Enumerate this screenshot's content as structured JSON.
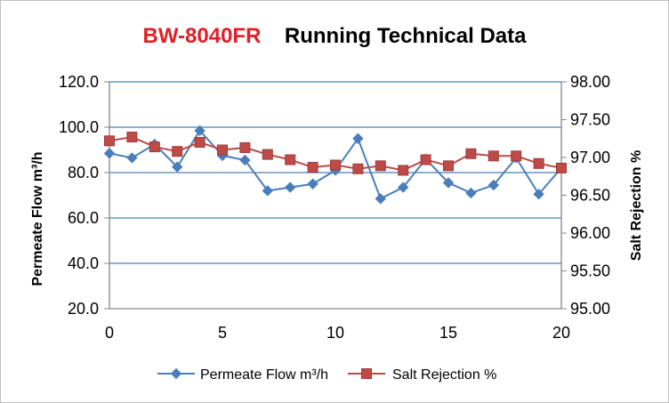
{
  "chart_data": {
    "type": "line",
    "title_part1": "BW-8040FR",
    "title_part2": "Running Technical Data",
    "x": [
      0,
      1,
      2,
      3,
      4,
      5,
      6,
      7,
      8,
      9,
      10,
      11,
      12,
      13,
      14,
      15,
      16,
      17,
      18,
      19,
      20
    ],
    "xlim": [
      0,
      20
    ],
    "xticks": [
      0,
      5,
      10,
      15,
      20
    ],
    "ylim_left": [
      20,
      120
    ],
    "yticks_left": [
      "20.0",
      "40.0",
      "60.0",
      "80.0",
      "100.0",
      "120.0"
    ],
    "ylim_right": [
      95,
      98
    ],
    "yticks_right": [
      "95.00",
      "95.50",
      "96.00",
      "96.50",
      "97.00",
      "97.50",
      "98.00"
    ],
    "ylabel_left": "Permeate Flow  m³/h",
    "ylabel_right": "Salt Rejection  %",
    "grid": "horizontal",
    "legend_position": "bottom",
    "series": [
      {
        "name": "Permeate Flow  m³/h",
        "axis": "left",
        "color": "#4a7ebb",
        "marker": "diamond",
        "values": [
          88.5,
          86.5,
          92.5,
          82.5,
          98.5,
          87.5,
          85.5,
          72,
          73.5,
          75,
          81,
          95,
          68.5,
          73.5,
          86,
          75.5,
          71,
          74.5,
          86.5,
          70.5,
          82
        ]
      },
      {
        "name": "Salt Rejection  %",
        "axis": "right",
        "color": "#be4b48",
        "marker": "square",
        "values": [
          97.22,
          97.27,
          97.14,
          97.08,
          97.2,
          97.1,
          97.13,
          97.04,
          96.97,
          96.87,
          96.9,
          96.85,
          96.89,
          96.83,
          96.97,
          96.89,
          97.05,
          97.02,
          97.02,
          96.92,
          96.86
        ]
      }
    ]
  }
}
